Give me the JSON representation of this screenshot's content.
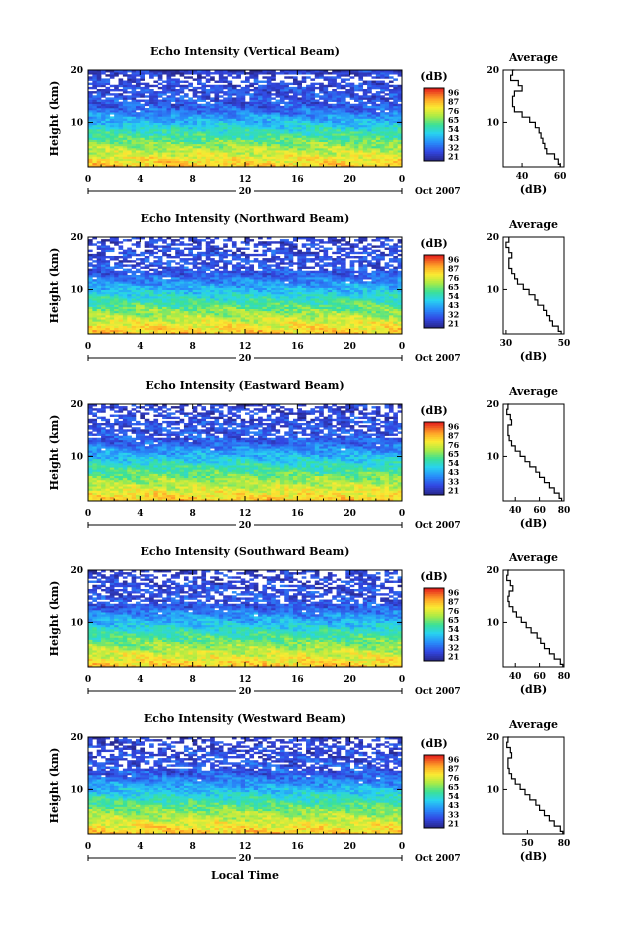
{
  "figure": {
    "x_label": "Local Time",
    "date_label": "Oct 2007",
    "day_label": "20",
    "colorbar_unit": "(dB)",
    "colorbar_ticks": [
      "96",
      "87",
      "76",
      "65",
      "54",
      "43",
      "32",
      "21"
    ],
    "colorbar_ticks_alt": [
      "96",
      "87",
      "76",
      "65",
      "54",
      "43",
      "33",
      "21"
    ]
  },
  "chart_data": [
    {
      "type": "heatmap",
      "title": "Echo Intensity (Vertical Beam)",
      "ylabel": "Height (km)",
      "xlabel": "",
      "x_ticks": [
        "0",
        "4",
        "8",
        "12",
        "16",
        "20",
        "0"
      ],
      "xlim": [
        0,
        24
      ],
      "y_ticks": [
        "10",
        "20"
      ],
      "ylim": [
        1.5,
        20
      ],
      "colorbar": {
        "unit": "(dB)",
        "min": 21,
        "max": 96,
        "ticks": [
          "96",
          "87",
          "76",
          "65",
          "54",
          "43",
          "32",
          "21"
        ]
      },
      "profile": {
        "title": "Average",
        "xlabel": "(dB)",
        "x_ticks": [
          "40",
          "60"
        ],
        "xlim": [
          30,
          62
        ],
        "heights_km": [
          1.5,
          2,
          3,
          4,
          5,
          6,
          7,
          8,
          9,
          10,
          11,
          12,
          13,
          14,
          15,
          16,
          17,
          18,
          19,
          20
        ],
        "values_db": [
          60,
          59,
          57,
          53,
          52,
          51,
          50,
          49,
          47,
          44,
          40,
          36,
          35,
          35,
          36,
          40,
          38,
          34,
          35,
          36
        ]
      }
    },
    {
      "type": "heatmap",
      "title": "Echo Intensity (Northward Beam)",
      "ylabel": "Height (km)",
      "xlabel": "",
      "x_ticks": [
        "0",
        "4",
        "8",
        "12",
        "16",
        "20",
        "0"
      ],
      "xlim": [
        0,
        24
      ],
      "y_ticks": [
        "10",
        "20"
      ],
      "ylim": [
        1.5,
        20
      ],
      "colorbar": {
        "unit": "(dB)",
        "min": 21,
        "max": 96,
        "ticks": [
          "96",
          "87",
          "76",
          "65",
          "54",
          "43",
          "32",
          "21"
        ]
      },
      "profile": {
        "title": "Average",
        "xlabel": "(dB)",
        "x_ticks": [
          "30",
          "50"
        ],
        "xlim": [
          29,
          50
        ],
        "heights_km": [
          1.5,
          2,
          3,
          4,
          5,
          6,
          7,
          8,
          9,
          10,
          11,
          12,
          13,
          14,
          15,
          16,
          17,
          18,
          19,
          20
        ],
        "values_db": [
          49,
          48,
          46,
          45,
          44,
          43,
          41,
          40,
          38,
          36,
          34,
          33,
          32,
          31,
          31,
          32,
          31,
          30,
          31,
          31
        ]
      }
    },
    {
      "type": "heatmap",
      "title": "Echo Intensity (Eastward Beam)",
      "ylabel": "Height (km)",
      "xlabel": "",
      "x_ticks": [
        "0",
        "4",
        "8",
        "12",
        "16",
        "20",
        "0"
      ],
      "xlim": [
        0,
        24
      ],
      "y_ticks": [
        "10",
        "20"
      ],
      "ylim": [
        1.5,
        20
      ],
      "colorbar": {
        "unit": "(dB)",
        "min": 21,
        "max": 96,
        "ticks": [
          "96",
          "87",
          "76",
          "65",
          "54",
          "43",
          "33",
          "21"
        ]
      },
      "profile": {
        "title": "Average",
        "xlabel": "(dB)",
        "x_ticks": [
          "40",
          "60",
          "80"
        ],
        "xlim": [
          30,
          80
        ],
        "heights_km": [
          1.5,
          2,
          3,
          4,
          5,
          6,
          7,
          8,
          9,
          10,
          11,
          12,
          13,
          14,
          15,
          16,
          17,
          18,
          19,
          20
        ],
        "values_db": [
          78,
          76,
          72,
          68,
          64,
          60,
          57,
          52,
          48,
          44,
          40,
          37,
          35,
          34,
          34,
          37,
          36,
          33,
          34,
          35
        ]
      }
    },
    {
      "type": "heatmap",
      "title": "Echo Intensity (Southward Beam)",
      "ylabel": "Height (km)",
      "xlabel": "",
      "x_ticks": [
        "0",
        "4",
        "8",
        "12",
        "16",
        "20",
        "0"
      ],
      "xlim": [
        0,
        24
      ],
      "y_ticks": [
        "10",
        "20"
      ],
      "ylim": [
        1.5,
        20
      ],
      "colorbar": {
        "unit": "(dB)",
        "min": 21,
        "max": 96,
        "ticks": [
          "96",
          "87",
          "76",
          "65",
          "54",
          "43",
          "32",
          "21"
        ]
      },
      "profile": {
        "title": "Average",
        "xlabel": "(dB)",
        "x_ticks": [
          "40",
          "60",
          "80"
        ],
        "xlim": [
          30,
          80
        ],
        "heights_km": [
          1.5,
          2,
          3,
          4,
          5,
          6,
          7,
          8,
          9,
          10,
          11,
          12,
          13,
          14,
          15,
          16,
          17,
          18,
          19,
          20
        ],
        "values_db": [
          79,
          77,
          72,
          68,
          64,
          61,
          58,
          53,
          49,
          45,
          41,
          38,
          35,
          34,
          35,
          38,
          36,
          33,
          34,
          35
        ]
      }
    },
    {
      "type": "heatmap",
      "title": "Echo Intensity (Westward Beam)",
      "ylabel": "Height (km)",
      "xlabel": "Local Time",
      "x_ticks": [
        "0",
        "4",
        "8",
        "12",
        "16",
        "20",
        "0"
      ],
      "xlim": [
        0,
        24
      ],
      "y_ticks": [
        "10",
        "20"
      ],
      "ylim": [
        1.5,
        20
      ],
      "colorbar": {
        "unit": "(dB)",
        "min": 21,
        "max": 96,
        "ticks": [
          "96",
          "87",
          "76",
          "65",
          "54",
          "43",
          "33",
          "21"
        ]
      },
      "profile": {
        "title": "Average",
        "xlabel": "(dB)",
        "x_ticks": [
          "50",
          "80"
        ],
        "xlim": [
          30,
          80
        ],
        "heights_km": [
          1.5,
          2,
          3,
          4,
          5,
          6,
          7,
          8,
          9,
          10,
          11,
          12,
          13,
          14,
          15,
          16,
          17,
          18,
          19,
          20
        ],
        "values_db": [
          79,
          77,
          72,
          68,
          64,
          60,
          57,
          52,
          48,
          44,
          40,
          37,
          35,
          34,
          34,
          37,
          36,
          33,
          34,
          35
        ]
      }
    }
  ]
}
